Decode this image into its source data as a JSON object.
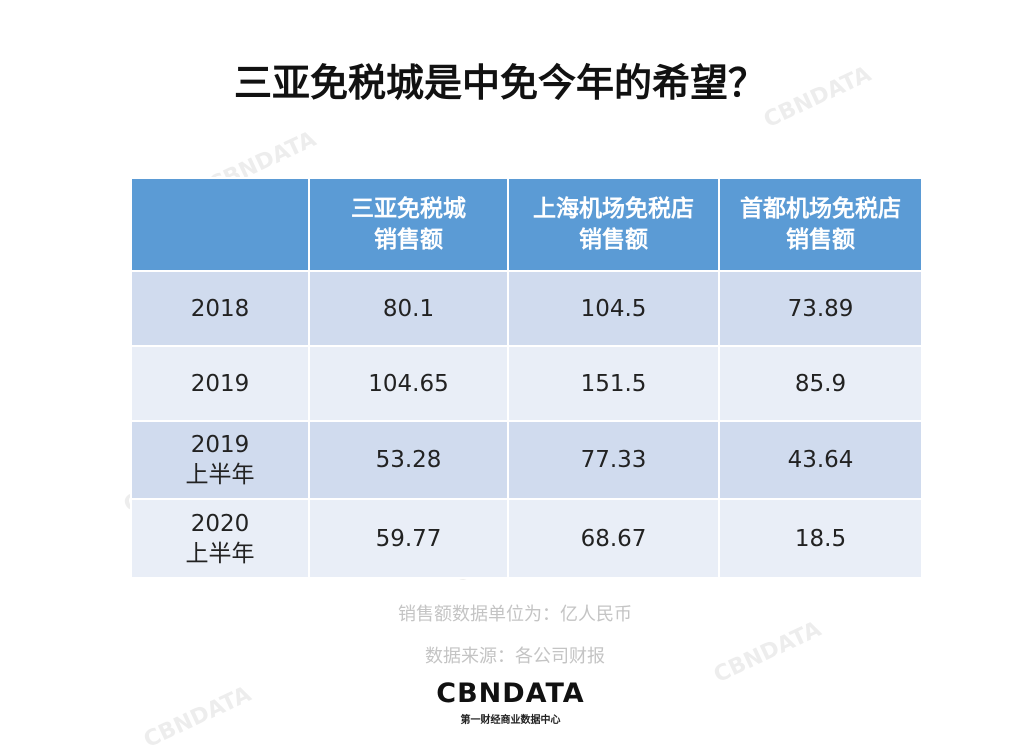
{
  "title": "三亚免税城是中免今年的希望？",
  "table": {
    "header": [
      [],
      [
        "三亚免税城",
        "销售额"
      ],
      [
        "上海机场免税店",
        "销售额"
      ],
      [
        "首都机场免税店",
        "销售额"
      ]
    ],
    "rows": [
      [
        [
          "2018"
        ],
        80.1,
        104.5,
        73.89
      ],
      [
        [
          "2019"
        ],
        104.65,
        151.5,
        85.9
      ],
      [
        [
          "2019",
          "上半年"
        ],
        53.28,
        77.33,
        43.64
      ],
      [
        [
          "2020",
          "上半年"
        ],
        59.77,
        68.67,
        18.5
      ]
    ]
  },
  "notes": [
    "销售额数据单位为：亿人民币",
    "数据来源：各公司财报"
  ],
  "logo": {
    "name": "CBNDATA",
    "tagline": "第一财经商业数据中心"
  },
  "watermark": "CBNDATA"
}
